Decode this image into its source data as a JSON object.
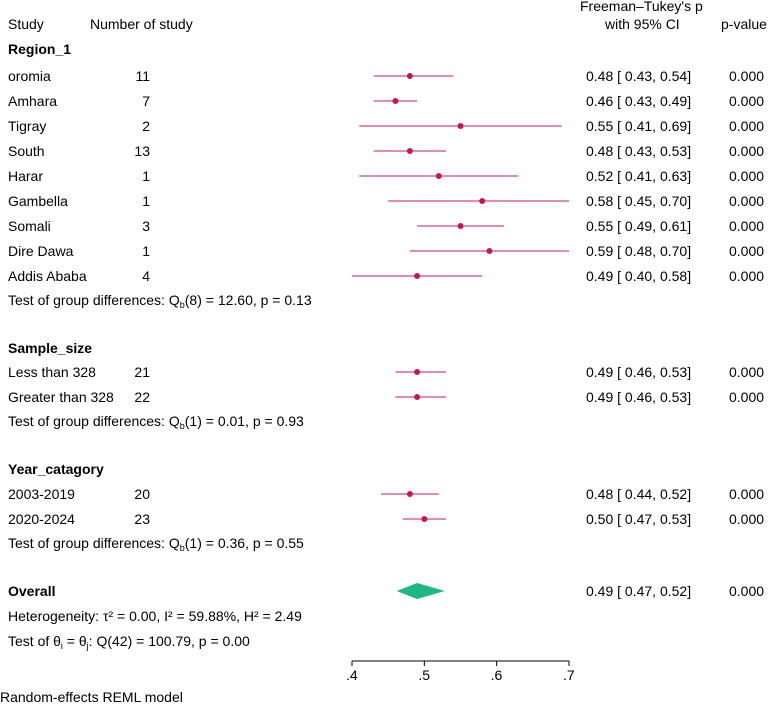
{
  "header": {
    "study": "Study",
    "number_of_study": "Number of study",
    "effect_line1": "Freeman–Tukey's p",
    "effect_line2": "with 95% CI",
    "pvalue": "p-value"
  },
  "colors": {
    "marker": "#c2185b",
    "ci_line": "#d4477f",
    "diamond": "#1db97f"
  },
  "groups": [
    {
      "title": "Region_1",
      "test_prefix": "Test of group differences: Q",
      "test_sub": "b",
      "test_suffix": "(8) = 12.60, p = 0.13",
      "studies": [
        {
          "name": "oromia",
          "n": "11",
          "est": 0.48,
          "lo": 0.43,
          "hi": 0.54,
          "ci_text": "0.48 [ 0.43,  0.54]",
          "p": "0.000"
        },
        {
          "name": "Amhara",
          "n": "7",
          "est": 0.46,
          "lo": 0.43,
          "hi": 0.49,
          "ci_text": "0.46 [ 0.43,  0.49]",
          "p": "0.000"
        },
        {
          "name": "Tigray",
          "n": "2",
          "est": 0.55,
          "lo": 0.41,
          "hi": 0.69,
          "ci_text": "0.55 [ 0.41,  0.69]",
          "p": "0.000"
        },
        {
          "name": "South",
          "n": "13",
          "est": 0.48,
          "lo": 0.43,
          "hi": 0.53,
          "ci_text": "0.48 [ 0.43,  0.53]",
          "p": "0.000"
        },
        {
          "name": "Harar",
          "n": "1",
          "est": 0.52,
          "lo": 0.41,
          "hi": 0.63,
          "ci_text": "0.52 [ 0.41,  0.63]",
          "p": "0.000"
        },
        {
          "name": "Gambella",
          "n": "1",
          "est": 0.58,
          "lo": 0.45,
          "hi": 0.7,
          "ci_text": "0.58 [ 0.45,  0.70]",
          "p": "0.000"
        },
        {
          "name": "Somali",
          "n": "3",
          "est": 0.55,
          "lo": 0.49,
          "hi": 0.61,
          "ci_text": "0.55 [ 0.49,  0.61]",
          "p": "0.000"
        },
        {
          "name": "Dire Dawa",
          "n": "1",
          "est": 0.59,
          "lo": 0.48,
          "hi": 0.7,
          "ci_text": "0.59 [ 0.48,  0.70]",
          "p": "0.000"
        },
        {
          "name": "Addis Ababa",
          "n": "4",
          "est": 0.49,
          "lo": 0.4,
          "hi": 0.58,
          "ci_text": "0.49 [ 0.40,  0.58]",
          "p": "0.000"
        }
      ]
    },
    {
      "title": "Sample_size",
      "test_prefix": "Test of group differences: Q",
      "test_sub": "b",
      "test_suffix": "(1) = 0.01, p = 0.93",
      "studies": [
        {
          "name": "Less than 328",
          "n": "21",
          "est": 0.49,
          "lo": 0.46,
          "hi": 0.53,
          "ci_text": "0.49 [ 0.46,  0.53]",
          "p": "0.000"
        },
        {
          "name": "Greater than 328",
          "n": "22",
          "est": 0.49,
          "lo": 0.46,
          "hi": 0.53,
          "ci_text": "0.49 [ 0.46,  0.53]",
          "p": "0.000"
        }
      ]
    },
    {
      "title": "Year_catagory",
      "test_prefix": "Test of group differences: Q",
      "test_sub": "b",
      "test_suffix": "(1) = 0.36, p = 0.55",
      "studies": [
        {
          "name": "2003-2019",
          "n": "20",
          "est": 0.48,
          "lo": 0.44,
          "hi": 0.52,
          "ci_text": "0.48 [ 0.44,  0.52]",
          "p": "0.000"
        },
        {
          "name": "2020-2024",
          "n": "23",
          "est": 0.5,
          "lo": 0.47,
          "hi": 0.53,
          "ci_text": "0.50 [ 0.47,  0.53]",
          "p": "0.000"
        }
      ]
    }
  ],
  "overall": {
    "title": "Overall",
    "est": 0.49,
    "lo": 0.47,
    "hi": 0.52,
    "ci_text": "0.49 [ 0.47,  0.52]",
    "p": "0.000",
    "heterogeneity": "Heterogeneity: τ² = 0.00, I² = 59.88%, H² = 2.49",
    "theta_prefix": "Test of θ",
    "theta_sub1": "i",
    "theta_mid": " = θ",
    "theta_sub2": "j",
    "theta_suffix": ": Q(42) = 100.79, p = 0.00"
  },
  "chart_data": {
    "type": "forest",
    "xlim": [
      0.4,
      0.7
    ],
    "xticks": [
      0.4,
      0.5,
      0.6,
      0.7
    ],
    "xtick_labels": [
      ".4",
      ".5",
      ".6",
      ".7"
    ]
  },
  "footer": "Random-effects REML model"
}
